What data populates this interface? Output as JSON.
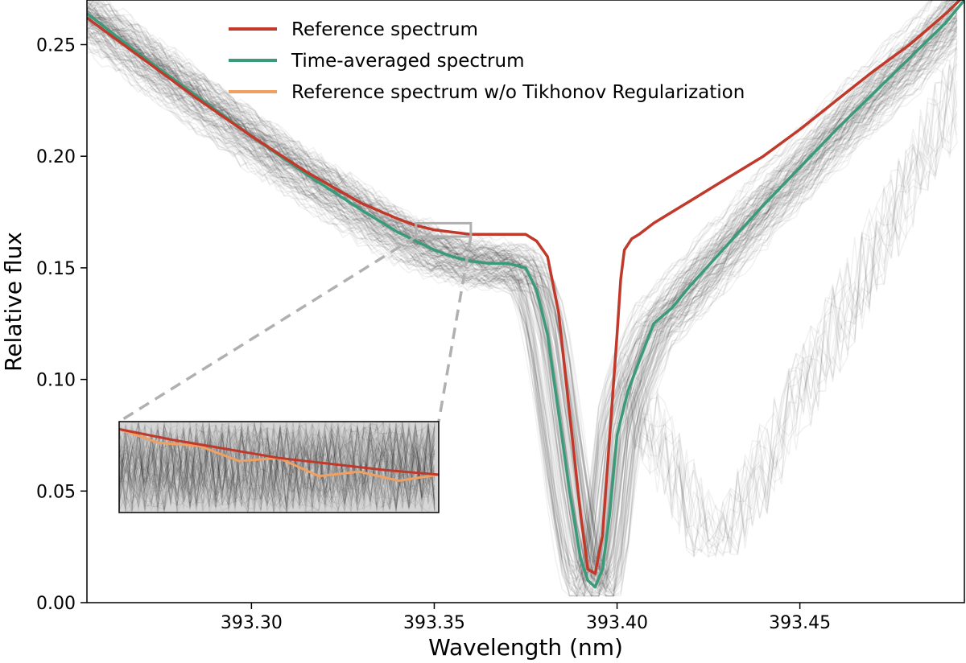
{
  "chart_data": {
    "type": "line",
    "title": "",
    "xlabel": "Wavelength (nm)",
    "ylabel": "Relative flux",
    "xlim": [
      393.255,
      393.495
    ],
    "ylim": [
      0.0,
      0.27
    ],
    "x_ticks": [
      393.3,
      393.35,
      393.4,
      393.45
    ],
    "x_tick_labels": [
      "393.30",
      "393.35",
      "393.40",
      "393.45"
    ],
    "y_ticks": [
      0.0,
      0.05,
      0.1,
      0.15,
      0.2,
      0.25
    ],
    "y_tick_labels": [
      "0.00",
      "0.05",
      "0.10",
      "0.15",
      "0.20",
      "0.25"
    ],
    "grid": false,
    "legend_position": "top-center",
    "colors": {
      "reference": "#c0392b",
      "time_averaged": "#3a9a7a",
      "no_tikhonov": "#f0a060",
      "individual": "#000000",
      "inset_box": "#b0b0b0"
    },
    "series": [
      {
        "name": "Reference spectrum",
        "key": "reference",
        "x": [
          393.255,
          393.27,
          393.285,
          393.3,
          393.315,
          393.33,
          393.34,
          393.345,
          393.35,
          393.355,
          393.36,
          393.365,
          393.37,
          393.375,
          393.378,
          393.381,
          393.384,
          393.387,
          393.39,
          393.392,
          393.394,
          393.396,
          393.398,
          393.4,
          393.401,
          393.402,
          393.404,
          393.406,
          393.41,
          393.415,
          393.42,
          393.43,
          393.44,
          393.45,
          393.46,
          393.47,
          393.48,
          393.49,
          393.495
        ],
        "values": [
          0.262,
          0.244,
          0.226,
          0.209,
          0.193,
          0.179,
          0.172,
          0.169,
          0.167,
          0.166,
          0.165,
          0.165,
          0.165,
          0.165,
          0.162,
          0.155,
          0.13,
          0.085,
          0.04,
          0.015,
          0.013,
          0.03,
          0.075,
          0.12,
          0.145,
          0.158,
          0.163,
          0.165,
          0.17,
          0.175,
          0.18,
          0.19,
          0.2,
          0.212,
          0.225,
          0.238,
          0.25,
          0.264,
          0.272
        ]
      },
      {
        "name": "Time-averaged spectrum",
        "key": "time_averaged",
        "x": [
          393.255,
          393.27,
          393.285,
          393.3,
          393.315,
          393.33,
          393.34,
          393.345,
          393.35,
          393.355,
          393.36,
          393.365,
          393.37,
          393.375,
          393.378,
          393.381,
          393.384,
          393.387,
          393.39,
          393.392,
          393.394,
          393.396,
          393.398,
          393.4,
          393.403,
          393.406,
          393.41,
          393.415,
          393.42,
          393.43,
          393.44,
          393.45,
          393.46,
          393.47,
          393.48,
          393.49,
          393.495
        ],
        "values": [
          0.264,
          0.245,
          0.227,
          0.209,
          0.192,
          0.176,
          0.166,
          0.162,
          0.158,
          0.155,
          0.153,
          0.152,
          0.152,
          0.15,
          0.14,
          0.12,
          0.085,
          0.05,
          0.02,
          0.01,
          0.007,
          0.015,
          0.04,
          0.075,
          0.095,
          0.108,
          0.125,
          0.132,
          0.142,
          0.16,
          0.178,
          0.195,
          0.212,
          0.228,
          0.244,
          0.26,
          0.27
        ]
      },
      {
        "name": "Reference spectrum w/o Tikhonov Regularization",
        "key": "no_tikhonov",
        "x": [],
        "values": []
      }
    ],
    "inset": {
      "xlim": [
        393.345,
        393.36
      ],
      "ylim": [
        0.164,
        0.17
      ],
      "reference": [
        0.1695,
        0.1688,
        0.1682,
        0.1676,
        0.1672,
        0.1668,
        0.1665
      ],
      "no_tikhonov": [
        0.1695,
        0.1686,
        0.1684,
        0.1674,
        0.1676,
        0.1664,
        0.1667,
        0.1661,
        0.1665
      ]
    }
  }
}
